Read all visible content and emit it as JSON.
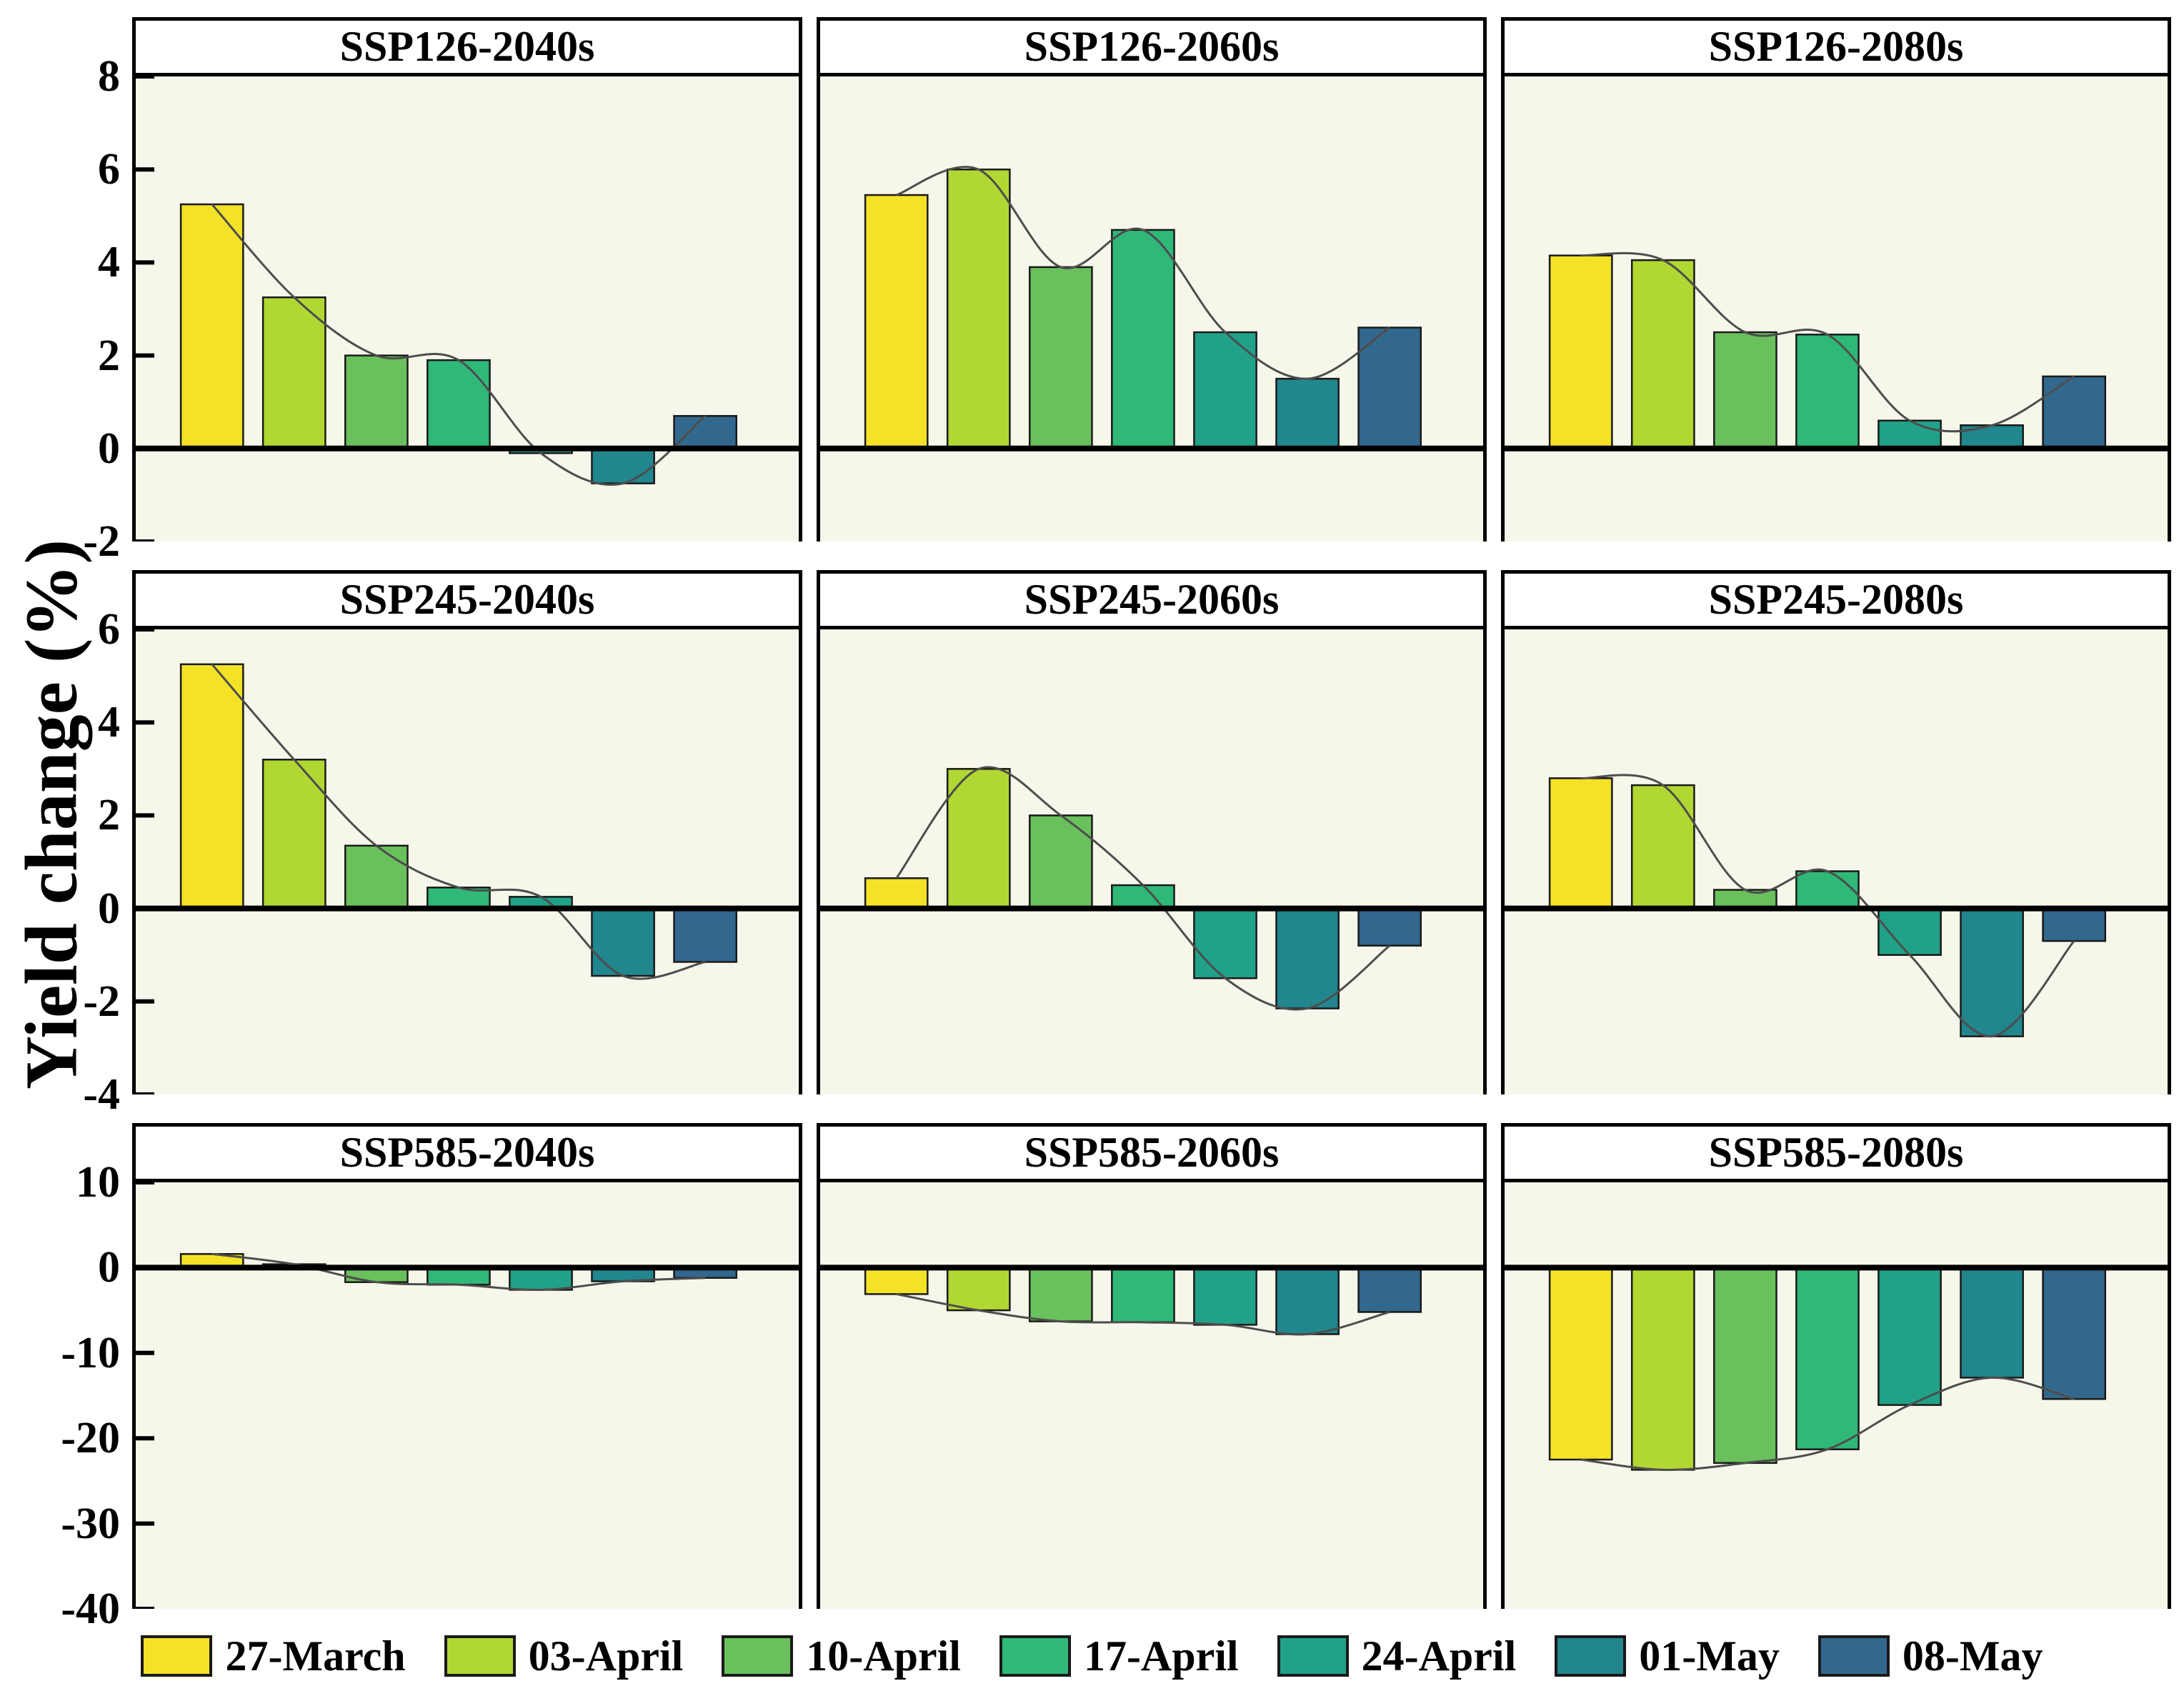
{
  "figure": {
    "ylabel": "Yield change (%)",
    "background": "#FFFFFF",
    "plot_background": "#F7F6EA",
    "curve_color": "#4D4D4D",
    "axis_color": "#000000"
  },
  "legend": [
    {
      "label": "27-March",
      "color": "#F4E226"
    },
    {
      "label": "03-April",
      "color": "#B1D832"
    },
    {
      "label": "10-April",
      "color": "#69C05C"
    },
    {
      "label": "17-April",
      "color": "#2FB878"
    },
    {
      "label": "24-April",
      "color": "#21A288"
    },
    {
      "label": "01-May",
      "color": "#21868E"
    },
    {
      "label": "08-May",
      "color": "#33688E"
    }
  ],
  "chart_data": [
    {
      "type": "bar",
      "title": "SSP126-2040s",
      "categories": [
        "27-March",
        "03-April",
        "10-April",
        "17-April",
        "24-April",
        "01-May",
        "08-May"
      ],
      "values": [
        5.25,
        3.25,
        2.0,
        1.9,
        -0.1,
        -0.75,
        0.7
      ],
      "ylim": [
        -2,
        8
      ],
      "yticks": [
        8,
        6,
        4,
        2,
        0,
        -2
      ],
      "ylabel": "Yield change (%)",
      "smooth_trend_line": true,
      "legend_position": "bottom",
      "grid": false
    },
    {
      "type": "bar",
      "title": "SSP126-2060s",
      "categories": [
        "27-March",
        "03-April",
        "10-April",
        "17-April",
        "24-April",
        "01-May",
        "08-May"
      ],
      "values": [
        5.45,
        6.0,
        3.9,
        4.7,
        2.5,
        1.5,
        2.6
      ],
      "ylim": [
        -2,
        8
      ],
      "yticks": [
        8,
        6,
        4,
        2,
        0,
        -2
      ],
      "ylabel": "Yield change (%)",
      "smooth_trend_line": true,
      "legend_position": "bottom",
      "grid": false
    },
    {
      "type": "bar",
      "title": "SSP126-2080s",
      "categories": [
        "27-March",
        "03-April",
        "10-April",
        "17-April",
        "24-April",
        "01-May",
        "08-May"
      ],
      "values": [
        4.15,
        4.05,
        2.5,
        2.45,
        0.6,
        0.5,
        1.55
      ],
      "ylim": [
        -2,
        8
      ],
      "yticks": [
        8,
        6,
        4,
        2,
        0,
        -2
      ],
      "ylabel": "Yield change (%)",
      "smooth_trend_line": true,
      "legend_position": "bottom",
      "grid": false
    },
    {
      "type": "bar",
      "title": "SSP245-2040s",
      "categories": [
        "27-March",
        "03-April",
        "10-April",
        "17-April",
        "24-April",
        "01-May",
        "08-May"
      ],
      "values": [
        5.25,
        3.2,
        1.35,
        0.45,
        0.25,
        -1.45,
        -1.15
      ],
      "ylim": [
        -4,
        6
      ],
      "yticks": [
        6,
        4,
        2,
        0,
        -2,
        -4
      ],
      "ylabel": "Yield change (%)",
      "smooth_trend_line": true,
      "legend_position": "bottom",
      "grid": false
    },
    {
      "type": "bar",
      "title": "SSP245-2060s",
      "categories": [
        "27-March",
        "03-April",
        "10-April",
        "17-April",
        "24-April",
        "01-May",
        "08-May"
      ],
      "values": [
        0.65,
        3.0,
        2.0,
        0.5,
        -1.5,
        -2.15,
        -0.8
      ],
      "ylim": [
        -4,
        6
      ],
      "yticks": [
        6,
        4,
        2,
        0,
        -2,
        -4
      ],
      "ylabel": "Yield change (%)",
      "smooth_trend_line": true,
      "legend_position": "bottom",
      "grid": false
    },
    {
      "type": "bar",
      "title": "SSP245-2080s",
      "categories": [
        "27-March",
        "03-April",
        "10-April",
        "17-April",
        "24-April",
        "01-May",
        "08-May"
      ],
      "values": [
        2.8,
        2.65,
        0.4,
        0.8,
        -1.0,
        -2.75,
        -0.7
      ],
      "ylim": [
        -4,
        6
      ],
      "yticks": [
        6,
        4,
        2,
        0,
        -2,
        -4
      ],
      "ylabel": "Yield change (%)",
      "smooth_trend_line": true,
      "legend_position": "bottom",
      "grid": false
    },
    {
      "type": "bar",
      "title": "SSP585-2040s",
      "categories": [
        "27-March",
        "03-April",
        "10-April",
        "17-April",
        "24-April",
        "01-May",
        "08-May"
      ],
      "values": [
        1.6,
        0.4,
        -1.7,
        -2.0,
        -2.6,
        -1.6,
        -1.2
      ],
      "ylim": [
        -40,
        10
      ],
      "yticks": [
        10,
        0,
        -10,
        -20,
        -30,
        -40
      ],
      "ylabel": "Yield change (%)",
      "smooth_trend_line": true,
      "legend_position": "bottom",
      "grid": false
    },
    {
      "type": "bar",
      "title": "SSP585-2060s",
      "categories": [
        "27-March",
        "03-April",
        "10-April",
        "17-April",
        "24-April",
        "01-May",
        "08-May"
      ],
      "values": [
        -3.1,
        -5.0,
        -6.3,
        -6.4,
        -6.7,
        -7.8,
        -5.2
      ],
      "ylim": [
        -40,
        10
      ],
      "yticks": [
        10,
        0,
        -10,
        -20,
        -30,
        -40
      ],
      "ylabel": "Yield change (%)",
      "smooth_trend_line": true,
      "legend_position": "bottom",
      "grid": false
    },
    {
      "type": "bar",
      "title": "SSP585-2080s",
      "categories": [
        "27-March",
        "03-April",
        "10-April",
        "17-April",
        "24-April",
        "01-May",
        "08-May"
      ],
      "values": [
        -22.5,
        -23.7,
        -22.9,
        -21.3,
        -16.1,
        -12.9,
        -15.4
      ],
      "ylim": [
        -40,
        10
      ],
      "yticks": [
        10,
        0,
        -10,
        -20,
        -30,
        -40
      ],
      "ylabel": "Yield change (%)",
      "smooth_trend_line": true,
      "legend_position": "bottom",
      "grid": false
    }
  ]
}
